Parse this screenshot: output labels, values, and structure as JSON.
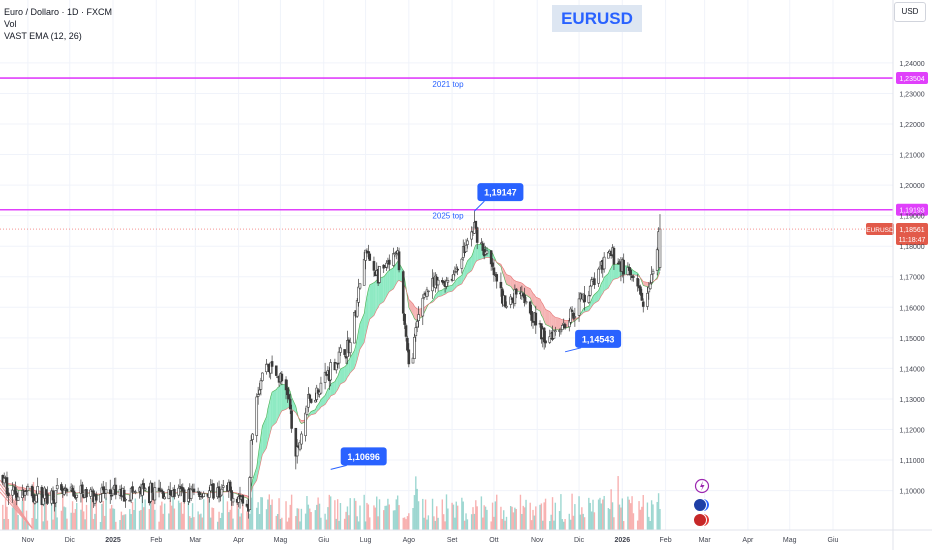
{
  "legend": {
    "line1": "Euro / Dollaro · 1D · FXCM",
    "line2": "Vol",
    "line3": "VAST EMA (12, 26)"
  },
  "brand_label": "EURUSD",
  "currency_button": "USD",
  "colors": {
    "bull": "#26a69a",
    "bear": "#ef5350",
    "candle": "#3a3a3a",
    "level": "#e040fb",
    "callout": "#2962ff",
    "price_tag": "#e25a4a",
    "ema_up": "#7ae6b8",
    "ema_down": "#f3a6a6"
  },
  "chart_data": {
    "type": "candlestick",
    "symbol": "EURUSD",
    "ylim": [
      1.093,
      1.2488
    ],
    "x_start": "2024-10-12",
    "x_end": "2026-07-14",
    "x_labels": [
      {
        "date": "2024-11-01",
        "label": "Nov"
      },
      {
        "date": "2024-12-01",
        "label": "Dic"
      },
      {
        "date": "2025-01-01",
        "label": "2025"
      },
      {
        "date": "2025-02-01",
        "label": "Feb"
      },
      {
        "date": "2025-03-01",
        "label": "Mar"
      },
      {
        "date": "2025-04-01",
        "label": "Apr"
      },
      {
        "date": "2025-05-01",
        "label": "Mag"
      },
      {
        "date": "2025-06-01",
        "label": "Giu"
      },
      {
        "date": "2025-07-01",
        "label": "Lug"
      },
      {
        "date": "2025-08-01",
        "label": "Ago"
      },
      {
        "date": "2025-09-01",
        "label": "Set"
      },
      {
        "date": "2025-10-01",
        "label": "Ott"
      },
      {
        "date": "2025-11-01",
        "label": "Nov"
      },
      {
        "date": "2025-12-01",
        "label": "Dic"
      },
      {
        "date": "2026-01-01",
        "label": "2026"
      },
      {
        "date": "2026-02-01",
        "label": "Feb"
      },
      {
        "date": "2026-03-01",
        "label": "Mar"
      },
      {
        "date": "2026-04-01",
        "label": "Apr"
      },
      {
        "date": "2026-05-01",
        "label": "Mag"
      },
      {
        "date": "2026-06-01",
        "label": "Giu"
      }
    ],
    "y_ticks": [
      {
        "value": 1.1,
        "label": "1,10000"
      },
      {
        "value": 1.11,
        "label": "1,11000"
      },
      {
        "value": 1.12,
        "label": "1,12000"
      },
      {
        "value": 1.13,
        "label": "1,13000"
      },
      {
        "value": 1.14,
        "label": "1,14000"
      },
      {
        "value": 1.15,
        "label": "1,15000"
      },
      {
        "value": 1.16,
        "label": "1,16000"
      },
      {
        "value": 1.17,
        "label": "1,17000"
      },
      {
        "value": 1.18,
        "label": "1,18000"
      },
      {
        "value": 1.19,
        "label": "1,19000"
      },
      {
        "value": 1.2,
        "label": "1,20000"
      },
      {
        "value": 1.21,
        "label": "1,21000"
      },
      {
        "value": 1.22,
        "label": "1,22000"
      },
      {
        "value": 1.23,
        "label": "1,23000"
      },
      {
        "value": 1.24,
        "label": "1,24000"
      }
    ],
    "levels": [
      {
        "value": 1.23504,
        "label": "2021 top",
        "tag": "1,23504"
      },
      {
        "value": 1.19193,
        "label": "2025 top",
        "tag": "1,19193"
      }
    ],
    "current": {
      "value": 1.18561,
      "symbol": "EURUSD",
      "price": "1,18561",
      "countdown": "11:18:47"
    },
    "callouts": [
      {
        "label": "1,19147",
        "date": "2025-09-17",
        "value": 1.19147,
        "position": "above"
      },
      {
        "label": "1,14543",
        "date": "2025-11-21",
        "value": 1.14543,
        "position": "right"
      },
      {
        "label": "1,10696",
        "date": "2025-06-06",
        "value": 1.10696,
        "position": "right"
      }
    ],
    "path": [
      [
        "2024-10-12",
        1.1045
      ],
      [
        "2024-10-20",
        1.0998
      ],
      [
        "2024-11-10",
        1.0985
      ],
      [
        "2024-12-20",
        1.099
      ],
      [
        "2025-03-25",
        1.0995
      ],
      [
        "2025-04-08",
        1.096
      ],
      [
        "2025-04-10",
        1.118
      ],
      [
        "2025-04-14",
        1.132
      ],
      [
        "2025-04-21",
        1.142
      ],
      [
        "2025-05-06",
        1.133
      ],
      [
        "2025-05-12",
        1.11
      ],
      [
        "2025-05-20",
        1.128
      ],
      [
        "2025-06-06",
        1.14
      ],
      [
        "2025-06-20",
        1.148
      ],
      [
        "2025-07-01",
        1.178
      ],
      [
        "2025-07-10",
        1.17
      ],
      [
        "2025-07-24",
        1.177
      ],
      [
        "2025-08-01",
        1.14
      ],
      [
        "2025-08-12",
        1.165
      ],
      [
        "2025-09-01",
        1.17
      ],
      [
        "2025-09-17",
        1.186
      ],
      [
        "2025-09-30",
        1.172
      ],
      [
        "2025-10-09",
        1.16
      ],
      [
        "2025-10-20",
        1.167
      ],
      [
        "2025-11-05",
        1.15
      ],
      [
        "2025-11-21",
        1.155
      ],
      [
        "2025-12-05",
        1.164
      ],
      [
        "2025-12-24",
        1.178
      ],
      [
        "2026-01-07",
        1.17
      ],
      [
        "2026-01-18",
        1.16
      ],
      [
        "2026-01-24",
        1.172
      ],
      [
        "2026-01-28",
        1.1856
      ]
    ]
  }
}
